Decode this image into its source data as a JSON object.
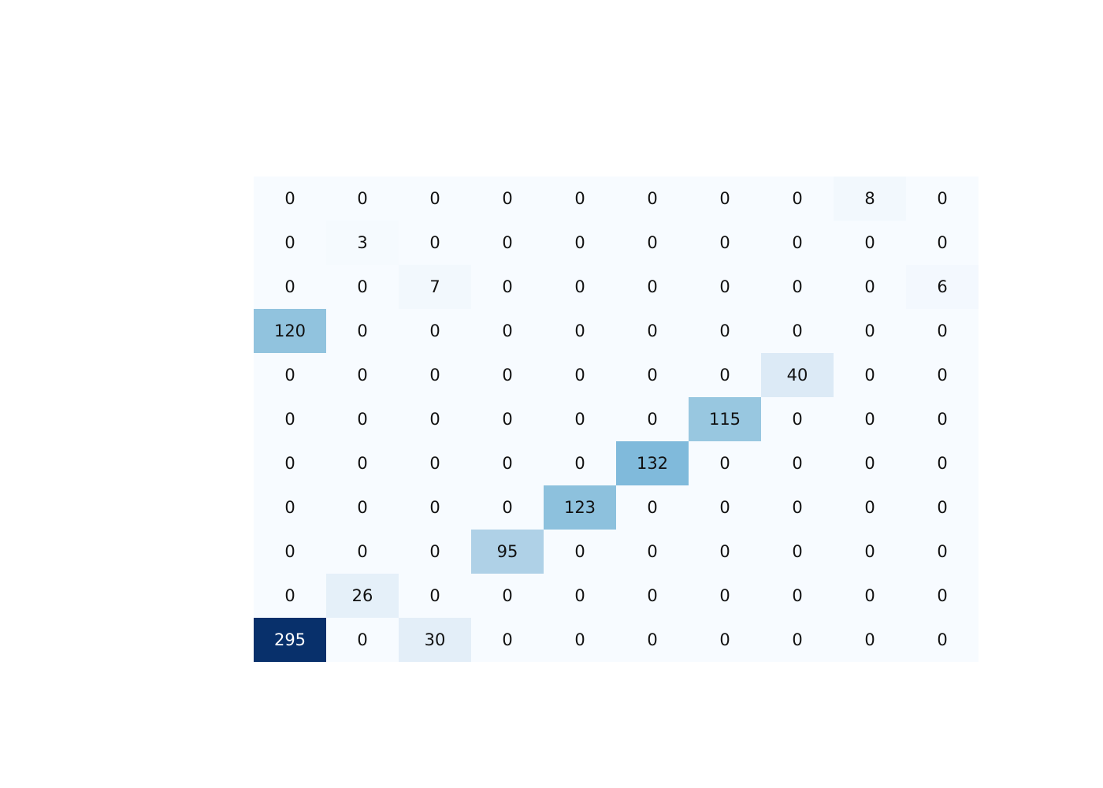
{
  "chart_data": {
    "type": "heatmap",
    "colorscale": "Blues",
    "zmin": 0,
    "zmax": 295,
    "colors": {
      "low": "#f7fbff",
      "high": "#08306b",
      "text_dark": "#111111",
      "text_light": "#ffffff"
    },
    "rows": 11,
    "cols": 10,
    "z": [
      [
        0,
        0,
        0,
        0,
        0,
        0,
        0,
        0,
        8,
        0
      ],
      [
        0,
        3,
        0,
        0,
        0,
        0,
        0,
        0,
        0,
        0
      ],
      [
        0,
        0,
        7,
        0,
        0,
        0,
        0,
        0,
        0,
        6
      ],
      [
        120,
        0,
        0,
        0,
        0,
        0,
        0,
        0,
        0,
        0
      ],
      [
        0,
        0,
        0,
        0,
        0,
        0,
        0,
        40,
        0,
        0
      ],
      [
        0,
        0,
        0,
        0,
        0,
        0,
        115,
        0,
        0,
        0
      ],
      [
        0,
        0,
        0,
        0,
        0,
        132,
        0,
        0,
        0,
        0
      ],
      [
        0,
        0,
        0,
        0,
        123,
        0,
        0,
        0,
        0,
        0
      ],
      [
        0,
        0,
        0,
        95,
        0,
        0,
        0,
        0,
        0,
        0
      ],
      [
        0,
        26,
        0,
        0,
        0,
        0,
        0,
        0,
        0,
        0
      ],
      [
        295,
        0,
        30,
        0,
        0,
        0,
        0,
        0,
        0,
        0
      ]
    ],
    "title": "",
    "xlabel": "",
    "ylabel": "",
    "grid": false,
    "legend": "none"
  }
}
